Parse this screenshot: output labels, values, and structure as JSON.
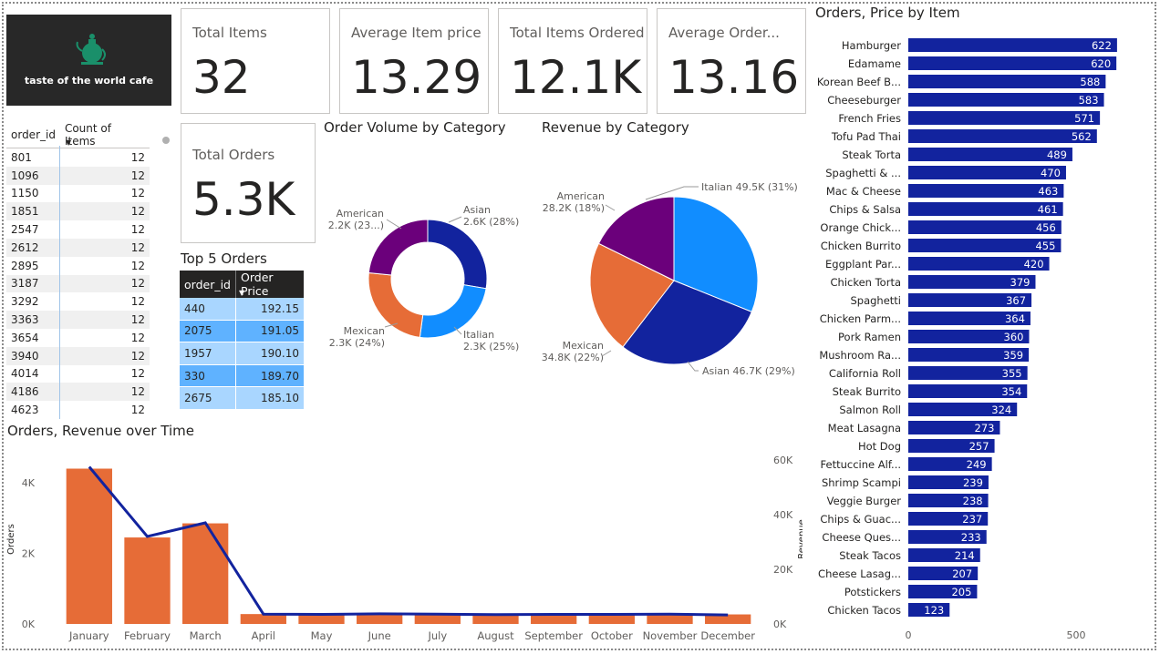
{
  "logo": {
    "text": "taste of the world cafe"
  },
  "kpis": [
    {
      "label": "Total Items",
      "value": "32"
    },
    {
      "label": "Average Item price",
      "value": "13.29"
    },
    {
      "label": "Total Items Ordered",
      "value": "12.1K"
    },
    {
      "label": "Average Order...",
      "value": "13.16"
    },
    {
      "label": "Total Orders",
      "value": "5.3K"
    }
  ],
  "order_table": {
    "headers": [
      "order_id",
      "Count of Items"
    ],
    "rows": [
      [
        "801",
        "12"
      ],
      [
        "1096",
        "12"
      ],
      [
        "1150",
        "12"
      ],
      [
        "1851",
        "12"
      ],
      [
        "2547",
        "12"
      ],
      [
        "2612",
        "12"
      ],
      [
        "2895",
        "12"
      ],
      [
        "3187",
        "12"
      ],
      [
        "3292",
        "12"
      ],
      [
        "3363",
        "12"
      ],
      [
        "3654",
        "12"
      ],
      [
        "3940",
        "12"
      ],
      [
        "4014",
        "12"
      ],
      [
        "4186",
        "12"
      ],
      [
        "4623",
        "12"
      ]
    ]
  },
  "top_orders": {
    "title": "Top 5 Orders",
    "headers": [
      "order_id",
      "Order Price"
    ],
    "rows": [
      [
        "440",
        "192.15"
      ],
      [
        "2075",
        "191.05"
      ],
      [
        "1957",
        "190.10"
      ],
      [
        "330",
        "189.70"
      ],
      [
        "2675",
        "185.10"
      ]
    ],
    "row_colors": [
      "#a9d6ff",
      "#5fb2ff",
      "#a9d6ff",
      "#5fb2ff",
      "#a9d6ff"
    ]
  },
  "chart_data": [
    {
      "type": "pie",
      "subtype": "donut",
      "title": "Order Volume by Category",
      "slices": [
        {
          "name": "Asian",
          "value": 2.6,
          "label": "Asian",
          "sublabel": "2.6K (28%)",
          "color": "#12239e"
        },
        {
          "name": "Italian",
          "value": 2.3,
          "label": "Italian",
          "sublabel": "2.3K (25%)",
          "color": "#118dff"
        },
        {
          "name": "Mexican",
          "value": 2.3,
          "label": "Mexican",
          "sublabel": "2.3K (24%)",
          "color": "#e66c37"
        },
        {
          "name": "American",
          "value": 2.2,
          "label": "American",
          "sublabel": "2.2K (23...)",
          "color": "#6b007b"
        }
      ]
    },
    {
      "type": "pie",
      "title": "Revenue by Category",
      "slices": [
        {
          "name": "Italian",
          "value": 49.5,
          "label": "Italian 49.5K (31%)",
          "color": "#118dff"
        },
        {
          "name": "Asian",
          "value": 46.7,
          "label": "Asian 46.7K (29%)",
          "color": "#12239e"
        },
        {
          "name": "Mexican",
          "value": 34.8,
          "label": "Mexican",
          "sublabel": "34.8K (22%)",
          "color": "#e66c37"
        },
        {
          "name": "American",
          "value": 28.2,
          "label": "American",
          "sublabel": "28.2K (18%)",
          "color": "#6b007b"
        }
      ]
    },
    {
      "type": "bar",
      "orientation": "horizontal",
      "title": "Orders, Price by Item",
      "categories": [
        "Hamburger",
        "Edamame",
        "Korean Beef B...",
        "Cheeseburger",
        "French Fries",
        "Tofu Pad Thai",
        "Steak Torta",
        "Spaghetti & ...",
        "Mac & Cheese",
        "Chips & Salsa",
        "Orange Chick...",
        "Chicken Burrito",
        "Eggplant Par...",
        "Chicken Torta",
        "Spaghetti",
        "Chicken Parm...",
        "Pork Ramen",
        "Mushroom Ra...",
        "California Roll",
        "Steak Burrito",
        "Salmon Roll",
        "Meat Lasagna",
        "Hot Dog",
        "Fettuccine Alf...",
        "Shrimp Scampi",
        "Veggie Burger",
        "Chips & Guac...",
        "Cheese Ques...",
        "Steak Tacos",
        "Cheese Lasag...",
        "Potstickers",
        "Chicken Tacos"
      ],
      "values": [
        622,
        620,
        588,
        583,
        571,
        562,
        489,
        470,
        463,
        461,
        456,
        455,
        420,
        379,
        367,
        364,
        360,
        359,
        355,
        354,
        324,
        273,
        257,
        249,
        239,
        238,
        237,
        233,
        214,
        207,
        205,
        123
      ],
      "xticks": [
        0,
        500
      ],
      "xlim": [
        0,
        700
      ],
      "color": "#12239e"
    },
    {
      "type": "bar+line",
      "title": "Orders, Revenue over Time",
      "categories": [
        "January",
        "February",
        "March",
        "April",
        "May",
        "June",
        "July",
        "August",
        "September",
        "October",
        "November",
        "December"
      ],
      "series": [
        {
          "name": "Orders",
          "type": "bar",
          "axis": "left",
          "values": [
            4400,
            2450,
            2850,
            280,
            270,
            280,
            275,
            270,
            275,
            270,
            280,
            270
          ],
          "color": "#e66c37"
        },
        {
          "name": "Revenue",
          "type": "line",
          "axis": "right",
          "values": [
            57500,
            32000,
            37000,
            3600,
            3500,
            3700,
            3600,
            3400,
            3500,
            3500,
            3600,
            3300
          ],
          "color": "#12239e"
        }
      ],
      "ylabel": "Orders",
      "y2label": "Revenue",
      "ylim": [
        0,
        4800
      ],
      "y2lim": [
        0,
        62000
      ],
      "yticks": [
        {
          "v": 0,
          "t": "0K"
        },
        {
          "v": 2000,
          "t": "2K"
        },
        {
          "v": 4000,
          "t": "4K"
        }
      ],
      "y2ticks": [
        {
          "v": 0,
          "t": "0K"
        },
        {
          "v": 20000,
          "t": "20K"
        },
        {
          "v": 40000,
          "t": "40K"
        },
        {
          "v": 60000,
          "t": "60K"
        }
      ]
    }
  ]
}
